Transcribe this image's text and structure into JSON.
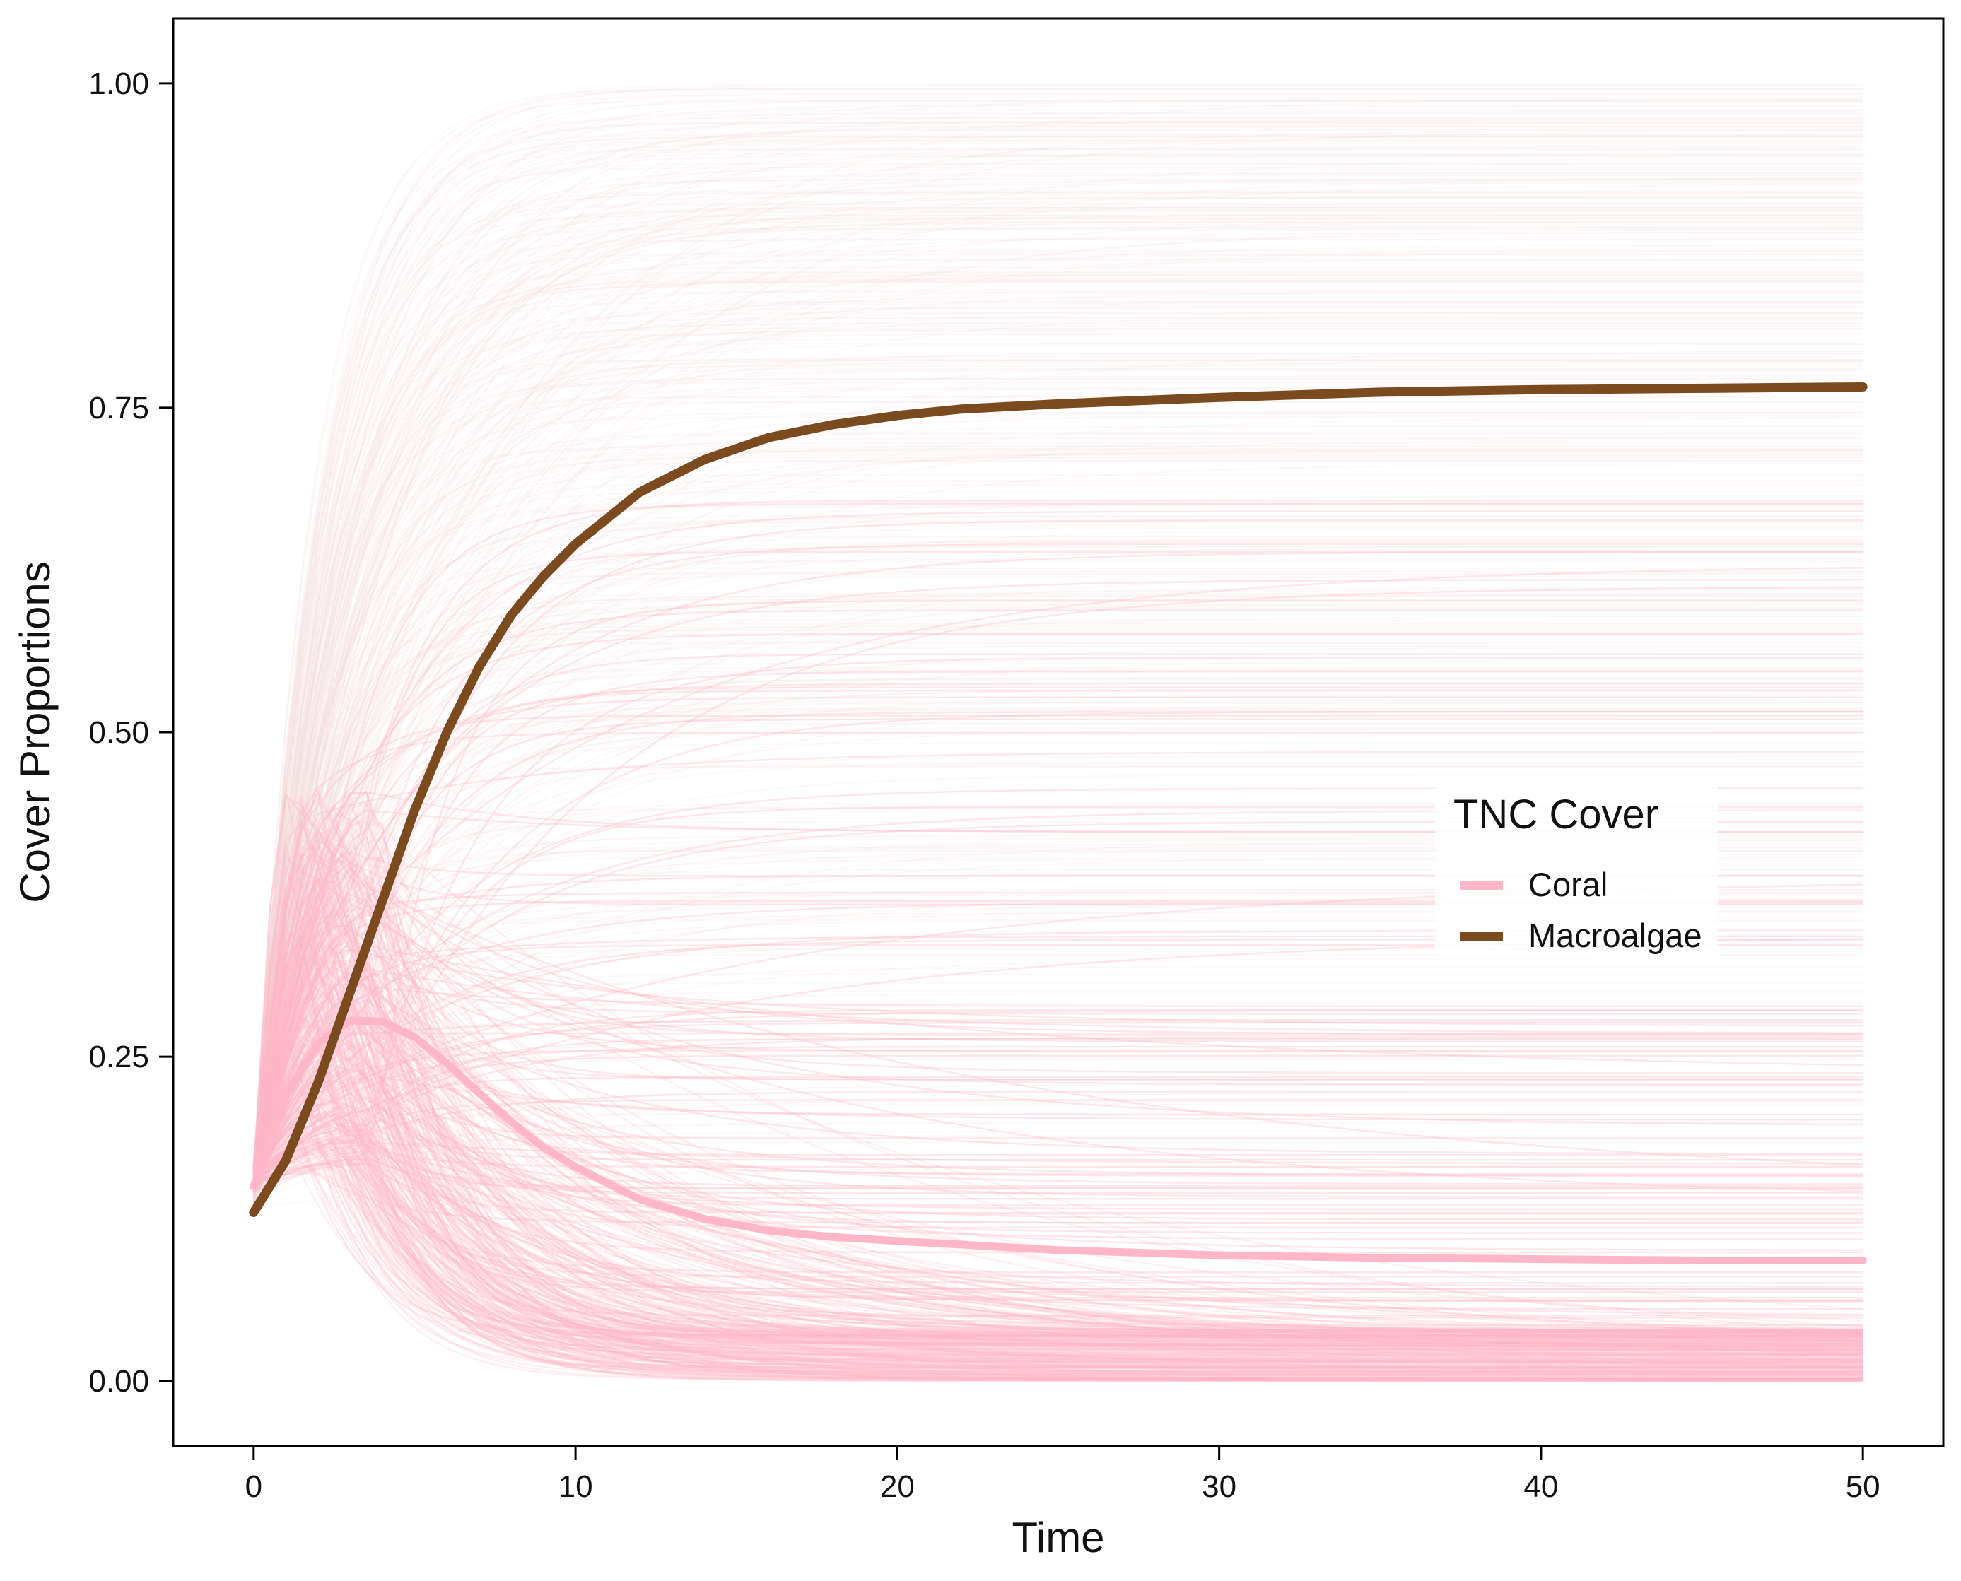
{
  "chart_data": {
    "type": "line",
    "title": "",
    "xlabel": "Time",
    "ylabel": "Cover Proportions",
    "xlim": [
      -2.5,
      52.5
    ],
    "ylim": [
      -0.05,
      1.05
    ],
    "x_ticks": [
      0,
      10,
      20,
      30,
      40,
      50
    ],
    "x_tick_labels": [
      "0",
      "10",
      "20",
      "30",
      "40",
      "50"
    ],
    "y_ticks": [
      0,
      0.25,
      0.5,
      0.75,
      1.0
    ],
    "y_tick_labels": [
      "0.00",
      "0.25",
      "0.50",
      "0.75",
      "1.00"
    ],
    "grid": false,
    "legend": {
      "title": "TNC Cover",
      "position": "right",
      "entries": [
        {
          "label": "Coral",
          "color": "#ffb6c8"
        },
        {
          "label": "Macroalgae",
          "color": "#7b4a1e"
        }
      ]
    },
    "series": [
      {
        "name": "Macroalgae",
        "color": "#7b4a1e",
        "x": [
          0,
          1,
          2,
          3,
          4,
          5,
          6,
          7,
          8,
          9,
          10,
          12,
          14,
          16,
          18,
          20,
          22,
          25,
          30,
          35,
          40,
          45,
          50
        ],
        "values": [
          0.13,
          0.17,
          0.23,
          0.3,
          0.37,
          0.44,
          0.5,
          0.55,
          0.59,
          0.62,
          0.645,
          0.685,
          0.71,
          0.727,
          0.737,
          0.744,
          0.749,
          0.753,
          0.758,
          0.762,
          0.764,
          0.765,
          0.766
        ]
      },
      {
        "name": "Coral",
        "color": "#ffb6c8",
        "x": [
          0,
          1,
          2,
          3,
          4,
          5,
          6,
          7,
          8,
          9,
          10,
          12,
          14,
          16,
          18,
          20,
          25,
          30,
          35,
          40,
          45,
          50
        ],
        "values": [
          0.15,
          0.22,
          0.26,
          0.278,
          0.277,
          0.265,
          0.245,
          0.222,
          0.2,
          0.18,
          0.165,
          0.14,
          0.125,
          0.116,
          0.111,
          0.108,
          0.101,
          0.097,
          0.095,
          0.094,
          0.093,
          0.093
        ]
      }
    ],
    "ensemble": {
      "description_note": "",
      "n_trajectories": 400,
      "coral_color": "#ffb6c8",
      "macroalgae_color": "#f2dede",
      "x_range": [
        0,
        50
      ]
    }
  }
}
